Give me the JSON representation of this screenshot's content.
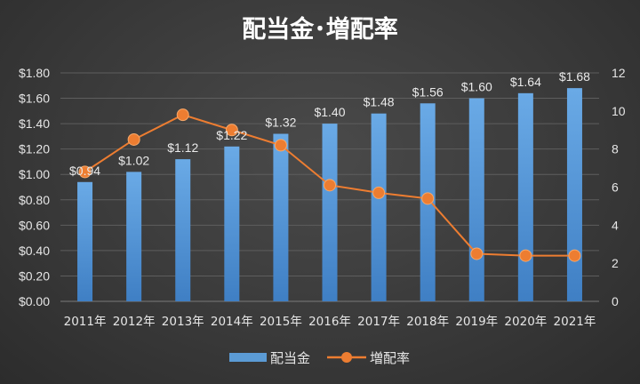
{
  "chart_data": {
    "type": "bar",
    "title": "配当金･増配率",
    "categories": [
      "2011年",
      "2012年",
      "2013年",
      "2014年",
      "2015年",
      "2016年",
      "2017年",
      "2018年",
      "2019年",
      "2020年",
      "2021年"
    ],
    "series": [
      {
        "name": "配当金",
        "type": "bar",
        "axis": "left",
        "color": "#5b9bd5",
        "values": [
          0.94,
          1.02,
          1.12,
          1.22,
          1.32,
          1.4,
          1.48,
          1.56,
          1.6,
          1.64,
          1.68
        ],
        "labels": [
          "$0.94",
          "$1.02",
          "$1.12",
          "$1.22",
          "$1.32",
          "$1.40",
          "$1.48",
          "$1.56",
          "$1.60",
          "$1.64",
          "$1.68"
        ]
      },
      {
        "name": "増配率",
        "type": "line",
        "axis": "right",
        "color": "#ed7d31",
        "values": [
          6.8,
          8.5,
          9.8,
          9.0,
          8.2,
          6.1,
          5.7,
          5.4,
          2.5,
          2.4,
          2.4
        ]
      }
    ],
    "y_left": {
      "ylim": [
        0,
        1.8
      ],
      "ticks": [
        0,
        0.2,
        0.4,
        0.6,
        0.8,
        1.0,
        1.2,
        1.4,
        1.6,
        1.8
      ],
      "tick_labels": [
        "$0.00",
        "$0.20",
        "$0.40",
        "$0.60",
        "$0.80",
        "$1.00",
        "$1.20",
        "$1.40",
        "$1.60",
        "$1.80"
      ]
    },
    "y_right": {
      "ylim": [
        0,
        12
      ],
      "ticks": [
        0,
        2,
        4,
        6,
        8,
        10,
        12
      ],
      "tick_labels": [
        "0",
        "2",
        "4",
        "6",
        "8",
        "10",
        "12"
      ]
    },
    "grid": true,
    "legend": "bottom"
  }
}
